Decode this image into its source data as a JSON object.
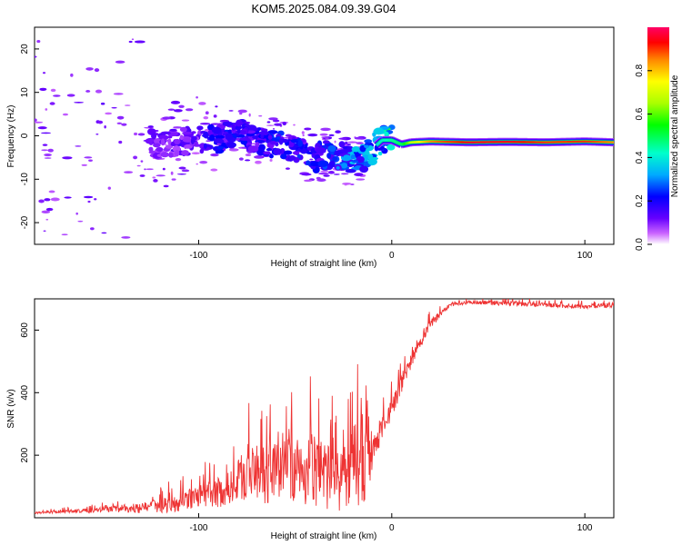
{
  "chart_data": [
    {
      "type": "heatmap",
      "title": "KOM5.2025.084.09.39.G04",
      "xlabel": "Height of straight line (km)",
      "ylabel": "Frequency (Hz)",
      "xlim": [
        -185,
        115
      ],
      "ylim": [
        -25,
        25
      ],
      "xticks": [
        -100,
        0,
        100
      ],
      "yticks": [
        -20,
        -10,
        0,
        10,
        20
      ],
      "colorbar": {
        "label": "Normalized spectral amplitude",
        "range": [
          0,
          1
        ],
        "ticks": [
          "0.0",
          "0.2",
          "0.4",
          "0.6",
          "0.8"
        ]
      },
      "ridge": {
        "x": [
          -185,
          -150,
          -120,
          -100,
          -90,
          -80,
          -70,
          -60,
          -50,
          -40,
          -30,
          -20,
          -15,
          -10,
          -5,
          0,
          5,
          10,
          20,
          40,
          60,
          80,
          100,
          115
        ],
        "y": [
          -2,
          -1,
          -2,
          -1,
          -1,
          1,
          -1,
          -2,
          -3,
          -5,
          -4,
          -6,
          -5,
          -3,
          -1,
          -1,
          -2,
          -1.5,
          -1.3,
          -1.5,
          -1.4,
          -1.5,
          -1.3,
          -1.5
        ],
        "amplitude": [
          0.05,
          0.1,
          0.12,
          0.15,
          0.2,
          0.2,
          0.18,
          0.22,
          0.22,
          0.2,
          0.25,
          0.3,
          0.3,
          0.35,
          0.4,
          0.45,
          0.5,
          0.7,
          0.85,
          0.95,
          0.95,
          0.9,
          0.9,
          0.85
        ]
      }
    },
    {
      "type": "line",
      "xlabel": "Height of straight line (km)",
      "ylabel": "SNR (v/v)",
      "xlim": [
        -185,
        115
      ],
      "ylim": [
        0,
        700
      ],
      "xticks": [
        -100,
        0,
        100
      ],
      "yticks": [
        200,
        400,
        600
      ],
      "color": "#ee3333",
      "series": [
        {
          "x": [
            -185,
            -170,
            -150,
            -140,
            -130,
            -120,
            -110,
            -100,
            -90,
            -85,
            -80,
            -75,
            -70,
            -65,
            -60,
            -55,
            -50,
            -45,
            -40,
            -35,
            -30,
            -25,
            -20,
            -15,
            -12,
            -10,
            -5,
            0,
            5,
            10,
            15,
            20,
            25,
            30,
            40,
            60,
            80,
            100,
            115
          ],
          "y": [
            15,
            20,
            25,
            30,
            30,
            40,
            50,
            70,
            80,
            90,
            120,
            140,
            150,
            130,
            150,
            160,
            150,
            140,
            160,
            150,
            140,
            130,
            150,
            170,
            180,
            200,
            290,
            350,
            420,
            500,
            560,
            620,
            650,
            680,
            690,
            685,
            680,
            675,
            680
          ],
          "spike": [
            5,
            8,
            15,
            20,
            25,
            40,
            50,
            60,
            80,
            90,
            100,
            160,
            140,
            150,
            150,
            160,
            170,
            160,
            220,
            200,
            200,
            180,
            240,
            260,
            150,
            80,
            60,
            60,
            50,
            40,
            30,
            30,
            20,
            10,
            10,
            12,
            12,
            12,
            12
          ]
        }
      ]
    }
  ]
}
